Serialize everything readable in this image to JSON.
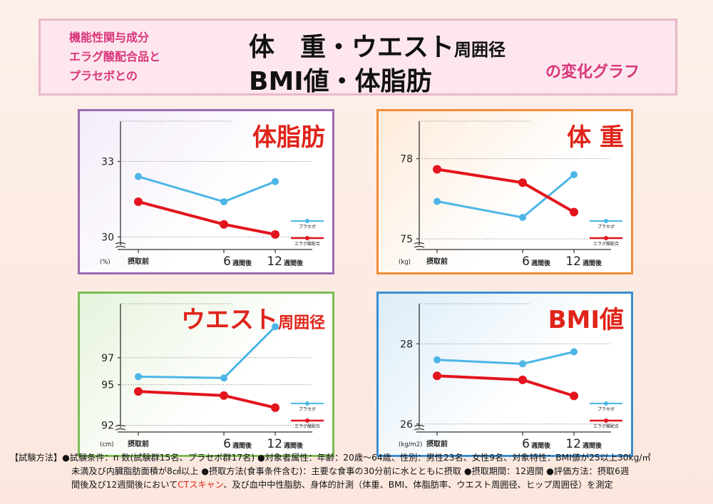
{
  "header": {
    "left_lines": [
      "機能性関与成分",
      "エラグ酸配合品と",
      "プラセボとの"
    ],
    "title_line1_main": "体　重・ウエスト",
    "title_line1_small": "周囲径",
    "title_line2": "BMI値・体脂肪",
    "right": "の変化グラフ"
  },
  "colors": {
    "placebo": "#4cb6e6",
    "ellagic": "#e3141d",
    "title_red": "#e0241a"
  },
  "chart_data": [
    {
      "id": "p-fat",
      "type": "line",
      "title": "体脂肪",
      "title_small": "",
      "unit": "(%)",
      "categories": [
        "摂取前",
        "6",
        "12"
      ],
      "suffix": "週間後",
      "ylim": [
        29.5,
        34.6
      ],
      "yticks": [
        30,
        33
      ],
      "ytick_labels": [
        "30",
        "33"
      ],
      "series": [
        {
          "name": "プラセボ",
          "color": "#4cb6e6",
          "values": [
            32.4,
            31.4,
            32.2
          ]
        },
        {
          "name": "エラグ酸配合",
          "color": "#e3141d",
          "values": [
            31.4,
            30.5,
            30.1
          ]
        }
      ]
    },
    {
      "id": "p-weight",
      "type": "line",
      "title": "体 重",
      "title_small": "",
      "unit": "(kg)",
      "categories": [
        "摂取前",
        "6",
        "12"
      ],
      "suffix": "週間後",
      "ylim": [
        74.6,
        79.4
      ],
      "yticks": [
        75,
        78
      ],
      "ytick_labels": [
        "75",
        "78"
      ],
      "series": [
        {
          "name": "プラセボ",
          "color": "#4cb6e6",
          "values": [
            76.4,
            75.8,
            77.4
          ]
        },
        {
          "name": "エラグ酸配合",
          "color": "#e3141d",
          "values": [
            77.6,
            77.1,
            76.0
          ]
        }
      ]
    },
    {
      "id": "p-waist",
      "type": "line",
      "title": "ウエスト",
      "title_small": "周囲径",
      "unit": "(cm)",
      "categories": [
        "摂取前",
        "6",
        "12"
      ],
      "suffix": "週間後",
      "ylim": [
        91.5,
        101
      ],
      "yticks": [
        92,
        95,
        97
      ],
      "ytick_labels": [
        "92",
        "95",
        "97"
      ],
      "series": [
        {
          "name": "プラセボ",
          "color": "#4cb6e6",
          "values": [
            95.6,
            95.5,
            99.3
          ]
        },
        {
          "name": "エラグ酸配合",
          "color": "#e3141d",
          "values": [
            94.5,
            94.2,
            93.3
          ]
        }
      ]
    },
    {
      "id": "p-bmi",
      "type": "line",
      "title": "BMI値",
      "title_small": "",
      "unit": "(kg/m2)",
      "categories": [
        "摂取前",
        "6",
        "12"
      ],
      "suffix": "週間後",
      "ylim": [
        25.8,
        29.0
      ],
      "yticks": [
        26,
        28
      ],
      "ytick_labels": [
        "26",
        "28"
      ],
      "series": [
        {
          "name": "プラセボ",
          "color": "#4cb6e6",
          "values": [
            27.6,
            27.5,
            27.8
          ]
        },
        {
          "name": "エラグ酸配合",
          "color": "#e3141d",
          "values": [
            27.2,
            27.1,
            26.7
          ]
        }
      ]
    }
  ],
  "footer": {
    "line1": "【試験方法】●試験条件：n 数(試験群15名、プラセボ群17名) ●対象者属性：年齢：20歳〜64歳、性別：男性23名、女性9名、対象特性：BMI値が25以上30kg/㎡",
    "line2": "未満及び内臓脂肪面積が8㎠以上 ●摂取方法(食事条件含む)：主要な食事の30分前に水とともに摂取 ●摂取期間：12週間 ●評価方法：摂取6週",
    "line3_a": "間後及び12週間後において",
    "line3_hl": "CTスキャン",
    "line3_b": "、及び血中中性脂肪、身体的計測（体重、BMI、体脂肪率、ウエスト周囲径、ヒップ周囲径）を測定"
  }
}
